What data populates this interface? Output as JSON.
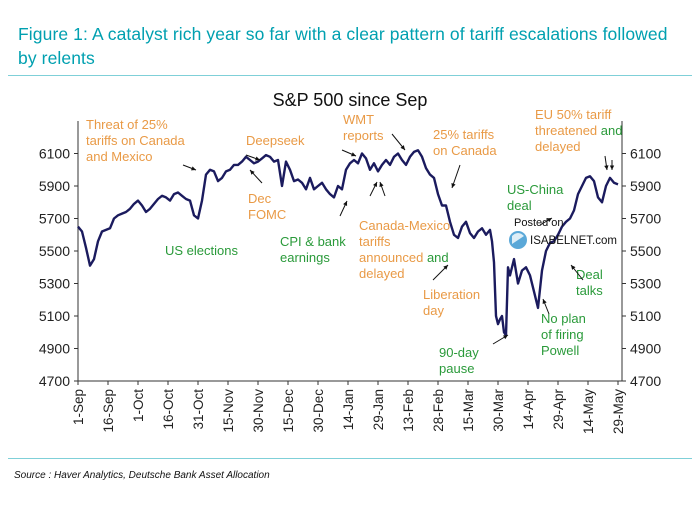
{
  "figure_title": "Figure 1: A catalyst rich year so far with a clear pattern of tariff escalations followed by relents",
  "source": "Source : Haver Analytics, Deutsche Bank Asset Allocation",
  "watermark": {
    "line1": "Posted on",
    "line2": "ISABELNET.com"
  },
  "colors": {
    "accent": "#00a0b0",
    "line": "#1b1b5e",
    "orange": "#e99a46",
    "green": "#2a9a3a"
  },
  "chart_data": {
    "type": "line",
    "title": "S&P 500 since Sep",
    "xlabel": "",
    "ylabel": "",
    "ylim": [
      4700,
      6300
    ],
    "yticks": [
      4700,
      4900,
      5100,
      5300,
      5500,
      5700,
      5900,
      6100
    ],
    "xlim": [
      0,
      272
    ],
    "xticks": [
      {
        "label": "1-Sep",
        "x": 0
      },
      {
        "label": "16-Sep",
        "x": 15
      },
      {
        "label": "1-Oct",
        "x": 30
      },
      {
        "label": "16-Oct",
        "x": 45
      },
      {
        "label": "31-Oct",
        "x": 60
      },
      {
        "label": "15-Nov",
        "x": 75
      },
      {
        "label": "30-Nov",
        "x": 90
      },
      {
        "label": "15-Dec",
        "x": 105
      },
      {
        "label": "30-Dec",
        "x": 120
      },
      {
        "label": "14-Jan",
        "x": 135
      },
      {
        "label": "29-Jan",
        "x": 150
      },
      {
        "label": "13-Feb",
        "x": 165
      },
      {
        "label": "28-Feb",
        "x": 180
      },
      {
        "label": "15-Mar",
        "x": 195
      },
      {
        "label": "30-Mar",
        "x": 210
      },
      {
        "label": "14-Apr",
        "x": 225
      },
      {
        "label": "29-Apr",
        "x": 240
      },
      {
        "label": "14-May",
        "x": 255
      },
      {
        "label": "29-May",
        "x": 270
      }
    ],
    "series": [
      {
        "name": "S&P 500",
        "x": [
          0,
          2,
          4,
          6,
          8,
          10,
          12,
          14,
          16,
          18,
          20,
          22,
          24,
          26,
          28,
          30,
          32,
          34,
          36,
          38,
          40,
          42,
          44,
          46,
          48,
          50,
          52,
          54,
          56,
          58,
          60,
          62,
          64,
          66,
          68,
          70,
          72,
          74,
          76,
          78,
          80,
          82,
          84,
          86,
          88,
          90,
          92,
          94,
          96,
          98,
          100,
          102,
          104,
          106,
          108,
          110,
          112,
          114,
          116,
          118,
          120,
          122,
          124,
          126,
          128,
          130,
          132,
          134,
          136,
          138,
          140,
          142,
          144,
          146,
          148,
          150,
          152,
          154,
          156,
          158,
          160,
          162,
          164,
          166,
          168,
          170,
          172,
          174,
          176,
          178,
          180,
          182,
          184,
          186,
          188,
          190,
          192,
          194,
          196,
          198,
          200,
          202,
          204,
          206,
          207,
          208,
          209,
          210,
          211,
          212,
          213,
          214,
          215,
          216,
          218,
          220,
          222,
          224,
          226,
          228,
          230,
          232,
          234,
          236,
          238,
          240,
          242,
          244,
          246,
          248,
          250,
          252,
          254,
          256,
          258,
          260,
          262,
          264,
          266,
          268,
          270
        ],
        "values": [
          5650,
          5620,
          5520,
          5410,
          5450,
          5560,
          5620,
          5630,
          5640,
          5700,
          5720,
          5730,
          5740,
          5760,
          5790,
          5810,
          5780,
          5740,
          5760,
          5790,
          5820,
          5840,
          5830,
          5810,
          5850,
          5860,
          5840,
          5820,
          5810,
          5720,
          5700,
          5810,
          5970,
          6000,
          5990,
          5930,
          5950,
          5990,
          6000,
          6030,
          6030,
          6050,
          6080,
          6060,
          6040,
          6050,
          6070,
          6090,
          6080,
          6050,
          6060,
          5900,
          6050,
          6000,
          5930,
          5940,
          5920,
          5880,
          5950,
          5880,
          5900,
          5920,
          5880,
          5850,
          5830,
          5900,
          5880,
          6000,
          6040,
          6060,
          6040,
          6100,
          6070,
          6000,
          6040,
          5990,
          6030,
          6060,
          6030,
          6080,
          6100,
          6060,
          6030,
          6080,
          6110,
          6120,
          6080,
          6010,
          5970,
          5950,
          5850,
          5780,
          5780,
          5680,
          5600,
          5580,
          5650,
          5680,
          5610,
          5580,
          5620,
          5640,
          5600,
          5630,
          5560,
          5430,
          5100,
          5050,
          5080,
          5100,
          5000,
          4980,
          5400,
          5350,
          5450,
          5300,
          5380,
          5400,
          5350,
          5250,
          5150,
          5380,
          5500,
          5550,
          5560,
          5600,
          5650,
          5680,
          5700,
          5750,
          5850,
          5900,
          5950,
          5960,
          5930,
          5830,
          5800,
          5900,
          5950,
          5920,
          5910
        ]
      }
    ],
    "annotations": [
      {
        "lines": [
          "Threat of 25%",
          "tariffs on Canada",
          "and Mexico"
        ],
        "color": "orange"
      },
      {
        "lines": [
          "US elections"
        ],
        "color": "green"
      },
      {
        "lines": [
          "Deepseek"
        ],
        "color": "orange"
      },
      {
        "lines": [
          "Dec",
          "FOMC"
        ],
        "color": "orange"
      },
      {
        "lines": [
          "CPI & bank",
          "earnings"
        ],
        "color": "green"
      },
      {
        "lines": [
          "WMT",
          "reports"
        ],
        "color": "orange"
      },
      {
        "lines": [
          "Canada-Mexico",
          "tariffs",
          "announced and",
          "delayed"
        ],
        "color": "orange"
      },
      {
        "lines": [
          "25% tariffs",
          "on Canada"
        ],
        "color": "orange"
      },
      {
        "lines": [
          "Liberation",
          "day"
        ],
        "color": "orange"
      },
      {
        "lines": [
          "90-day",
          "pause"
        ],
        "color": "green"
      },
      {
        "lines": [
          "US-China",
          "deal"
        ],
        "color": "green"
      },
      {
        "lines": [
          "Deal",
          "talks"
        ],
        "color": "green"
      },
      {
        "lines": [
          "No plan",
          "of firing",
          "Powell"
        ],
        "color": "green"
      },
      {
        "lines": [
          "EU 50% tariff",
          "threatened and",
          "delayed"
        ],
        "color": "orange"
      }
    ]
  }
}
